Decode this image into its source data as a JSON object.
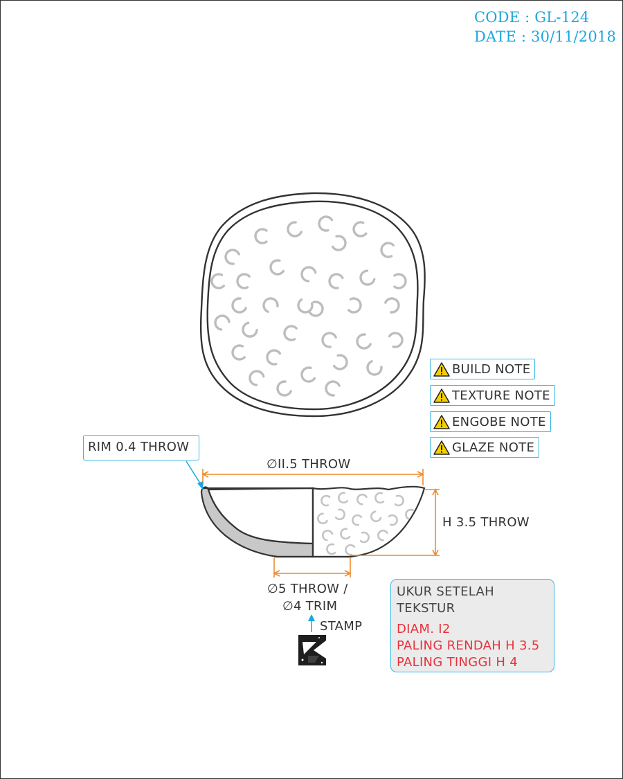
{
  "header": {
    "code": "CODE : GL-124",
    "date": "DATE : 30/11/2018"
  },
  "notes": [
    {
      "label": "BUILD NOTE",
      "icon": "warning-icon"
    },
    {
      "label": "TEXTURE NOTE",
      "icon": "warning-icon"
    },
    {
      "label": "ENGOBE NOTE",
      "icon": "warning-icon"
    },
    {
      "label": "GLAZE NOTE",
      "icon": "warning-icon"
    }
  ],
  "dimensions": {
    "rim": "RIM 0.4 THROW",
    "diameter": "∅II.5 THROW",
    "height": "H 3.5 THROW",
    "foot_line1": "∅5 THROW /",
    "foot_line2": "∅4 TRIM",
    "stamp": "STAMP"
  },
  "measure_note": {
    "title_line1": "UKUR SETELAH",
    "title_line2": "TEKSTUR",
    "lines": [
      "DIAM. I2",
      "PALING RENDAH H 3.5",
      "PALING TINGGI H 4"
    ]
  },
  "colors": {
    "accent_blue": "#1aa7dc",
    "dimension_orange": "#f08a2c",
    "note_red": "#e8323c",
    "warning_yellow": "#f5d000",
    "outline": "#333333"
  }
}
